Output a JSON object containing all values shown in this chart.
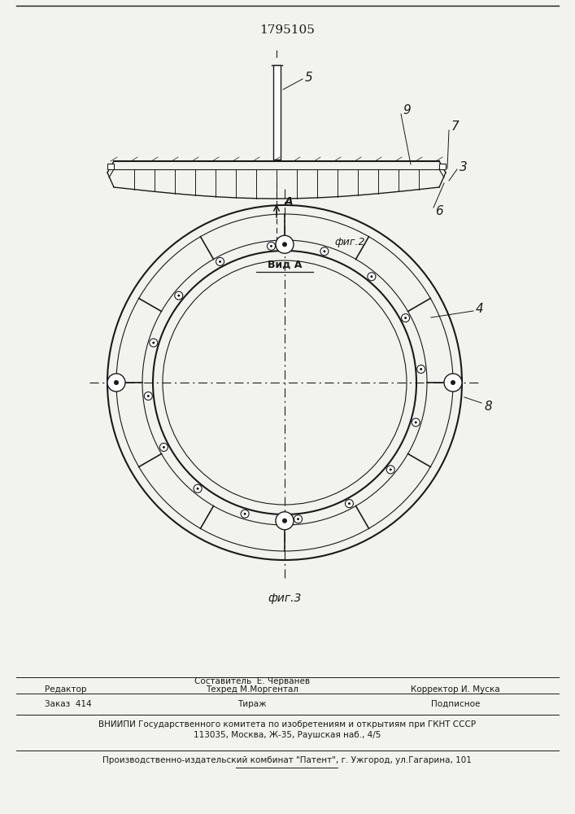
{
  "patent_number": "1795105",
  "bg_color": "#f2f2ee",
  "line_color": "#1a1a1a",
  "footer": {
    "editor_label": "Редактор",
    "compositor": "Составитель  Е. Черванев",
    "techred": "Техред М.Моргентал",
    "corrector": "Корректор И. Муска",
    "order": "Заказ  414",
    "tirazh": "Тираж",
    "podpisnoe": "Подписное",
    "vniiipi": "ВНИИПИ Государственного комитета по изобретениям и открытиям при ГКНТ СССР",
    "address": "113035, Москва, Ж-35, Раушская наб., 4/5",
    "publisher": "Производственно-издательский комбинат \"Патент\", г. Ужгород, ул.Гагарина, 101"
  }
}
